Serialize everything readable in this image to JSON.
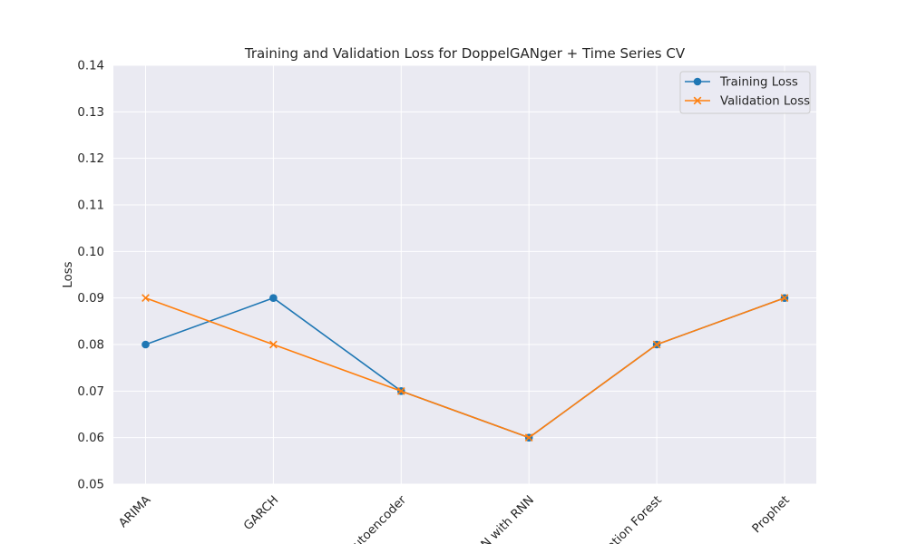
{
  "chart_data": {
    "type": "line",
    "title": "Training and Validation Loss for DoppelGANger + Time Series CV",
    "xlabel": "",
    "ylabel": "Loss",
    "categories": [
      "ARIMA",
      "GARCH",
      "Autoencoder",
      "GAN with RNN",
      "Isolation Forest",
      "Prophet"
    ],
    "series": [
      {
        "name": "Training Loss",
        "values": [
          0.08,
          0.09,
          0.07,
          0.06,
          0.08,
          0.09
        ],
        "color": "#1f77b4",
        "marker": "circle"
      },
      {
        "name": "Validation Loss",
        "values": [
          0.09,
          0.08,
          0.07,
          0.06,
          0.08,
          0.09
        ],
        "color": "#ff7f0e",
        "marker": "x"
      }
    ],
    "ylim": [
      0.05,
      0.14
    ],
    "yticks": [
      "0.05",
      "0.06",
      "0.07",
      "0.08",
      "0.09",
      "0.10",
      "0.11",
      "0.12",
      "0.13",
      "0.14"
    ],
    "grid": true,
    "legend_position": "top-right",
    "background": "#eaeaf2",
    "grid_color": "#ffffff"
  }
}
